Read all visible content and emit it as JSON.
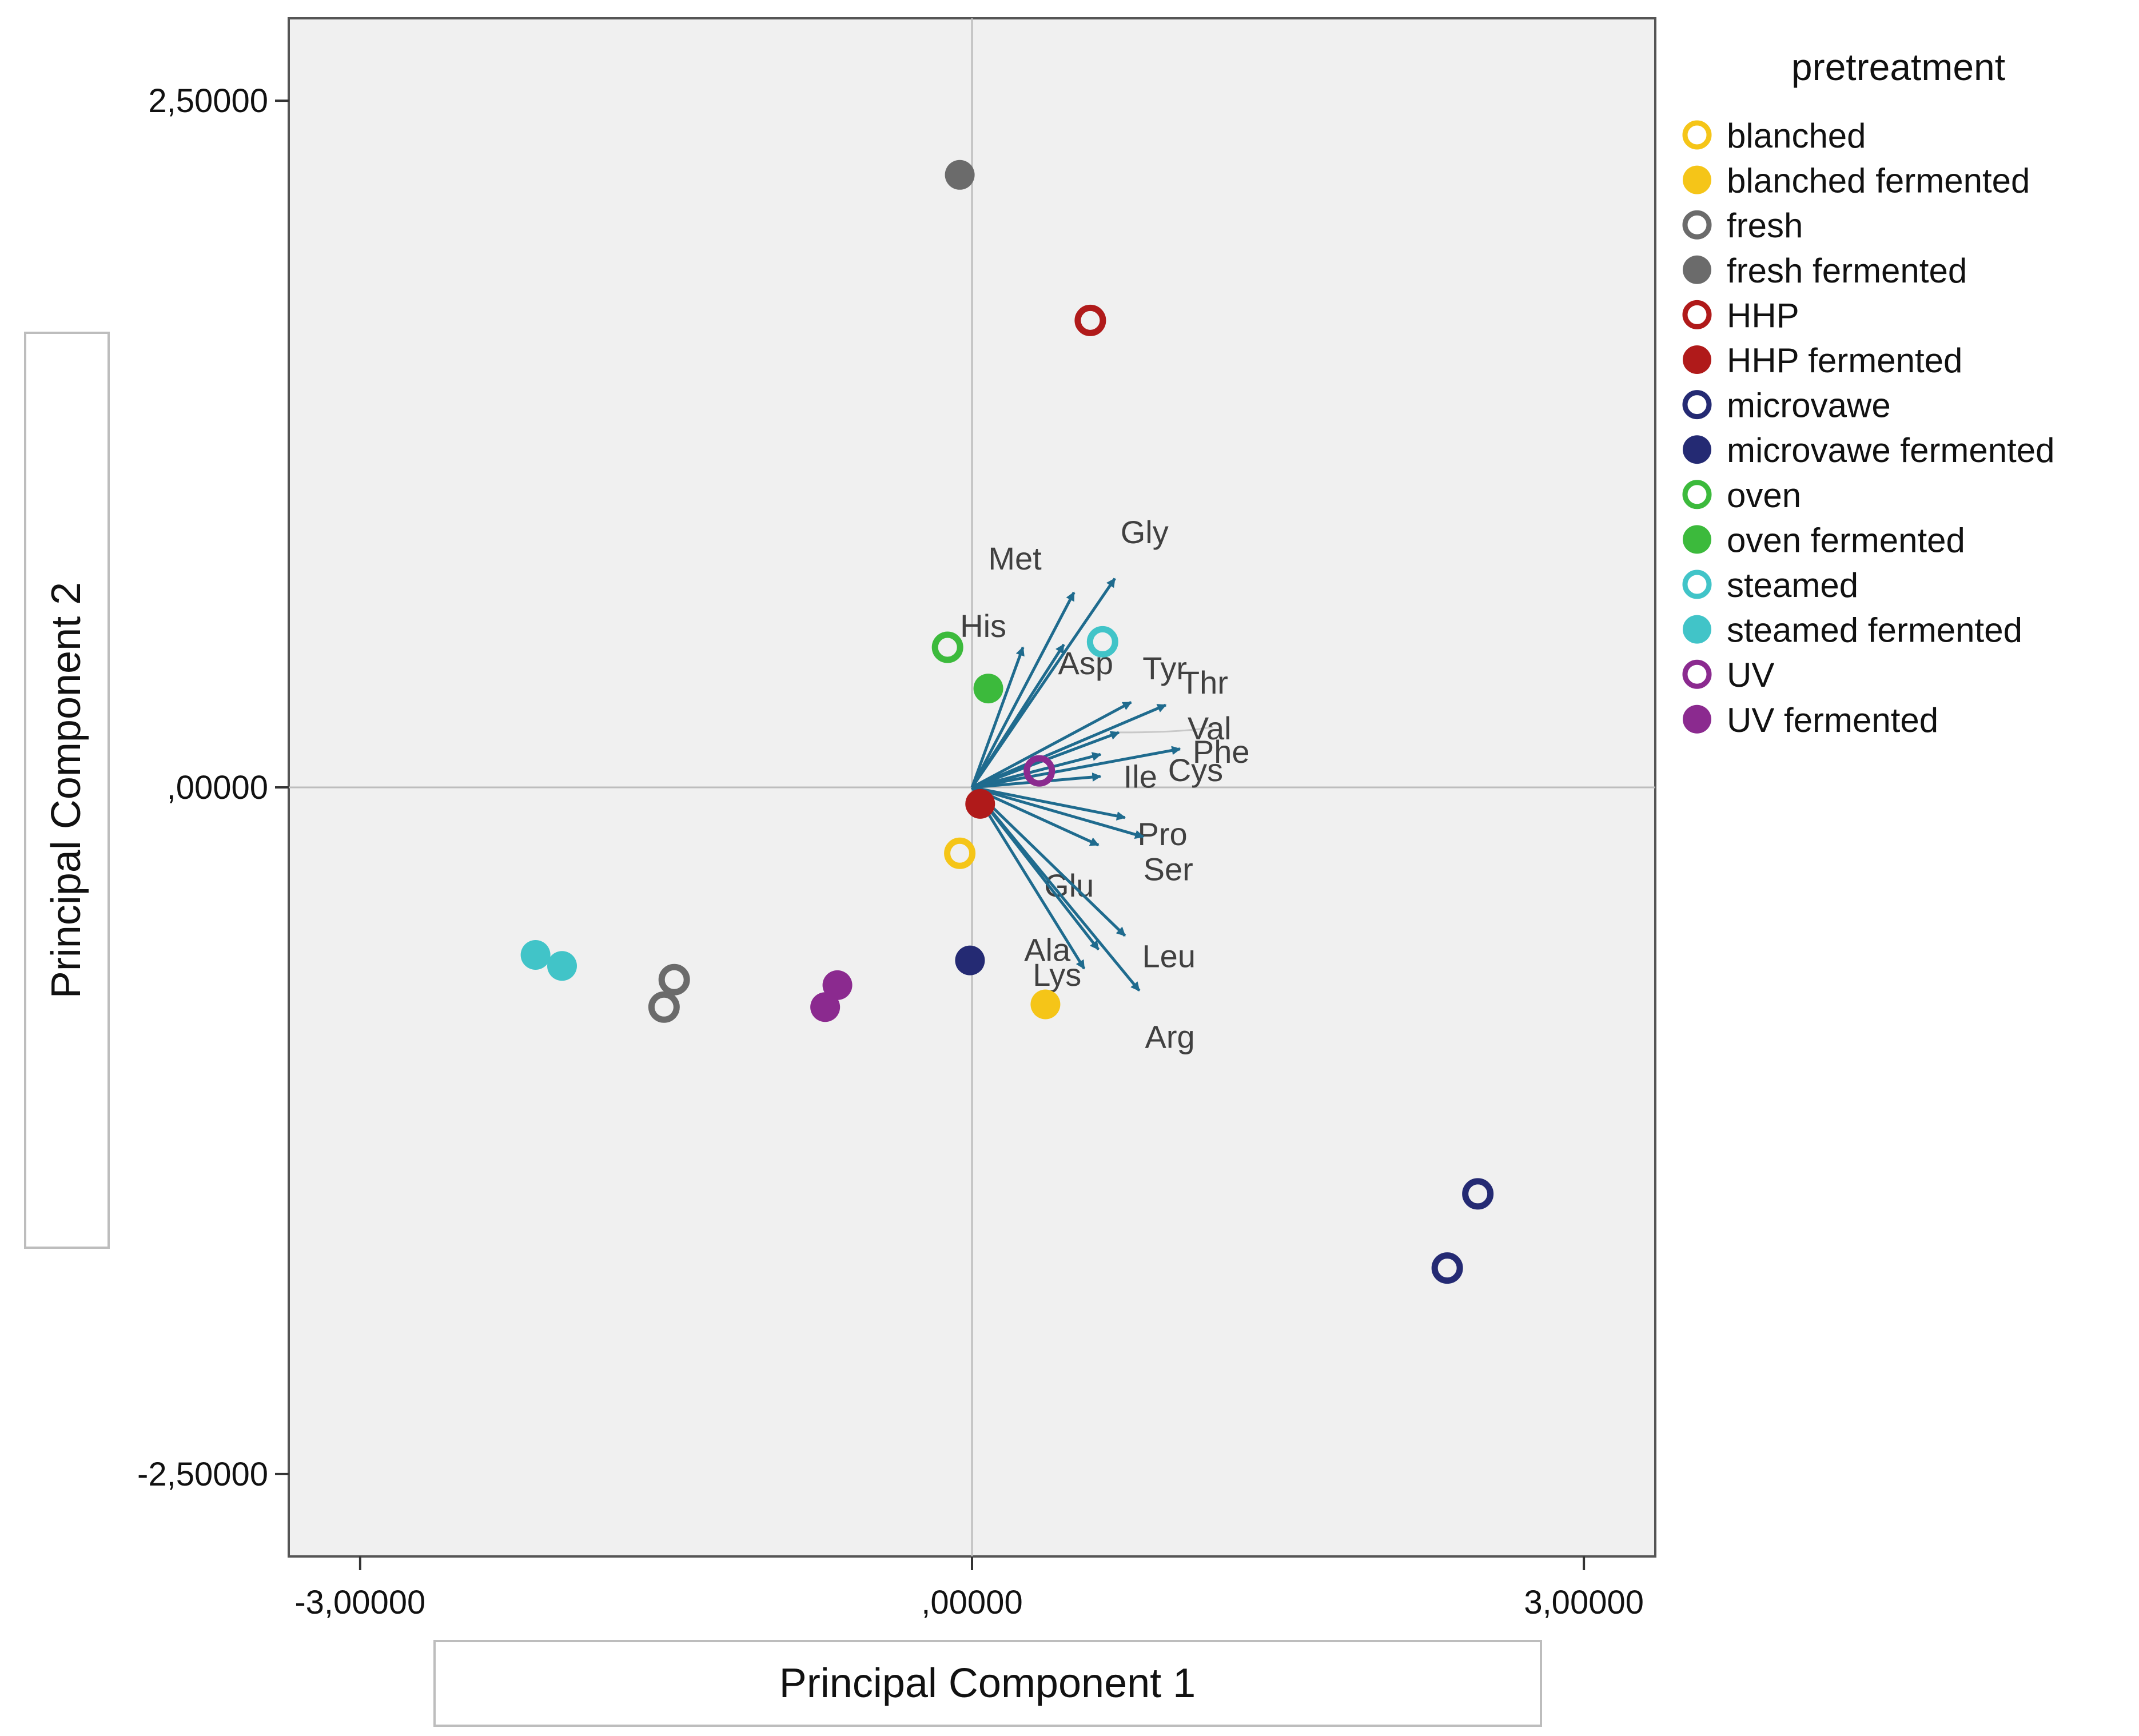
{
  "chart_data": {
    "type": "scatter",
    "title": "",
    "xlabel": "Principal Component 1",
    "ylabel": "Principal Component 2",
    "xlim": [
      -3.35,
      3.35
    ],
    "ylim": [
      -2.8,
      2.8
    ],
    "xticks": [
      {
        "value": -3.0,
        "label": "-3,00000"
      },
      {
        "value": 0.0,
        "label": ",00000"
      },
      {
        "value": 3.0,
        "label": "3,00000"
      }
    ],
    "yticks": [
      {
        "value": 2.5,
        "label": "2,50000"
      },
      {
        "value": 0.0,
        "label": ",00000"
      },
      {
        "value": -2.5,
        "label": "-2,50000"
      }
    ],
    "legend": {
      "title": "pretreatment",
      "position": "right",
      "entries": [
        {
          "label": "blanched",
          "color": "#f5c518",
          "filled": false
        },
        {
          "label": "blanched fermented",
          "color": "#f5c518",
          "filled": true
        },
        {
          "label": "fresh",
          "color": "#6b6b6b",
          "filled": false
        },
        {
          "label": "fresh fermented",
          "color": "#6b6b6b",
          "filled": true
        },
        {
          "label": "HHP",
          "color": "#b01a1a",
          "filled": false
        },
        {
          "label": "HHP fermented",
          "color": "#b01a1a",
          "filled": true
        },
        {
          "label": "microvawe",
          "color": "#242a73",
          "filled": false
        },
        {
          "label": "microvawe fermented",
          "color": "#242a73",
          "filled": true
        },
        {
          "label": "oven",
          "color": "#3cba3c",
          "filled": false
        },
        {
          "label": "oven fermented",
          "color": "#3cba3c",
          "filled": true
        },
        {
          "label": "steamed",
          "color": "#41c4c8",
          "filled": false
        },
        {
          "label": "steamed fermented",
          "color": "#41c4c8",
          "filled": true
        },
        {
          "label": "UV",
          "color": "#8b2a8f",
          "filled": false
        },
        {
          "label": "UV fermented",
          "color": "#8b2a8f",
          "filled": true
        }
      ]
    },
    "points": [
      {
        "group": "fresh fermented",
        "x": -0.06,
        "y": 2.23
      },
      {
        "group": "HHP",
        "x": 0.58,
        "y": 1.7
      },
      {
        "group": "oven",
        "x": -0.12,
        "y": 0.51
      },
      {
        "group": "oven fermented",
        "x": 0.08,
        "y": 0.36
      },
      {
        "group": "steamed",
        "x": 0.64,
        "y": 0.53
      },
      {
        "group": "UV",
        "x": 0.33,
        "y": 0.06
      },
      {
        "group": "HHP fermented",
        "x": 0.04,
        "y": -0.06
      },
      {
        "group": "blanched",
        "x": -0.06,
        "y": -0.24
      },
      {
        "group": "microvawe fermented",
        "x": -0.01,
        "y": -0.63
      },
      {
        "group": "blanched fermented",
        "x": 0.36,
        "y": -0.79
      },
      {
        "group": "steamed fermented",
        "x": -2.14,
        "y": -0.61
      },
      {
        "group": "steamed fermented",
        "x": -2.01,
        "y": -0.65
      },
      {
        "group": "fresh",
        "x": -1.46,
        "y": -0.7
      },
      {
        "group": "fresh",
        "x": -1.51,
        "y": -0.8
      },
      {
        "group": "UV fermented",
        "x": -0.66,
        "y": -0.72
      },
      {
        "group": "UV fermented",
        "x": -0.72,
        "y": -0.8
      },
      {
        "group": "microvawe",
        "x": 2.48,
        "y": -1.48
      },
      {
        "group": "microvawe",
        "x": 2.33,
        "y": -1.75
      }
    ],
    "loadings": {
      "color": "#1f6b8e",
      "vectors": [
        {
          "label": "Gly",
          "x": 0.7,
          "y": 0.76
        },
        {
          "label": "Met",
          "x": 0.5,
          "y": 0.71
        },
        {
          "label": "His",
          "x": 0.25,
          "y": 0.51
        },
        {
          "label": "Asp",
          "x": 0.45,
          "y": 0.52
        },
        {
          "label": "Tyr",
          "x": 0.78,
          "y": 0.31
        },
        {
          "label": "Thr",
          "x": 0.95,
          "y": 0.3
        },
        {
          "label": "Val",
          "x": 0.72,
          "y": 0.2
        },
        {
          "label": "Phe",
          "x": 1.02,
          "y": 0.14
        },
        {
          "label": "Cys",
          "x": 0.63,
          "y": 0.04
        },
        {
          "label": "Ile",
          "x": 0.63,
          "y": 0.12
        },
        {
          "label": "Pro",
          "x": 0.75,
          "y": -0.11
        },
        {
          "label": "Ser",
          "x": 0.84,
          "y": -0.18
        },
        {
          "label": "Glu",
          "x": 0.62,
          "y": -0.21
        },
        {
          "label": "Leu",
          "x": 0.75,
          "y": -0.54
        },
        {
          "label": "Ala",
          "x": 0.62,
          "y": -0.59
        },
        {
          "label": "Arg",
          "x": 0.82,
          "y": -0.74
        },
        {
          "label": "Lys",
          "x": 0.55,
          "y": -0.66
        }
      ]
    }
  }
}
